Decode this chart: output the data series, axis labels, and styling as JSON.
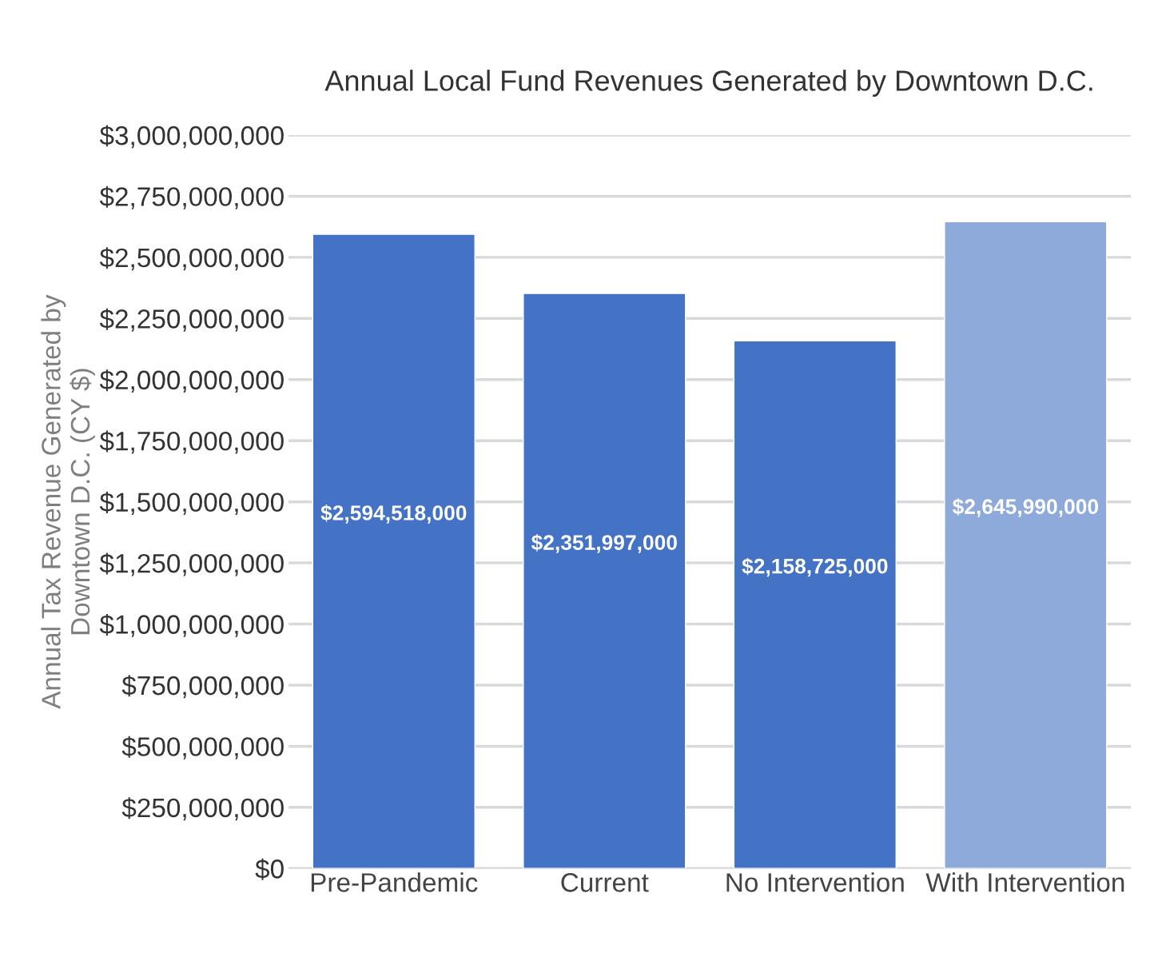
{
  "chart_data": {
    "type": "bar",
    "title": "Annual Local Fund Revenues Generated by Downtown D.C.",
    "ylabel": "Annual Tax Revenue Generated by\nDowntown D.C. (CY $)",
    "categories": [
      "Pre-Pandemic",
      "Current",
      "No Intervention",
      "With Intervention"
    ],
    "values": [
      2594518000,
      2351997000,
      2158725000,
      2645990000
    ],
    "colors": [
      "#4472c4",
      "#4472c4",
      "#4472c4",
      "#8eaadb"
    ],
    "value_labels": [
      "$2,594,518,000",
      "$2,351,997,000",
      "$2,158,725,000",
      "$2,645,990,000"
    ],
    "ylim": [
      0,
      3000000000
    ],
    "yticks": [
      {
        "value": 0,
        "label": "$0"
      },
      {
        "value": 250000000,
        "label": "$250,000,000"
      },
      {
        "value": 500000000,
        "label": "$500,000,000"
      },
      {
        "value": 750000000,
        "label": "$750,000,000"
      },
      {
        "value": 1000000000,
        "label": "$1,000,000,000"
      },
      {
        "value": 1250000000,
        "label": "$1,250,000,000"
      },
      {
        "value": 1500000000,
        "label": "$1,500,000,000"
      },
      {
        "value": 1750000000,
        "label": "$1,750,000,000"
      },
      {
        "value": 2000000000,
        "label": "$2,000,000,000"
      },
      {
        "value": 2250000000,
        "label": "$2,250,000,000"
      },
      {
        "value": 2500000000,
        "label": "$2,500,000,000"
      },
      {
        "value": 2750000000,
        "label": "$2,750,000,000"
      },
      {
        "value": 3000000000,
        "label": "$3,000,000,000"
      }
    ],
    "grid": "y",
    "legend": false
  }
}
